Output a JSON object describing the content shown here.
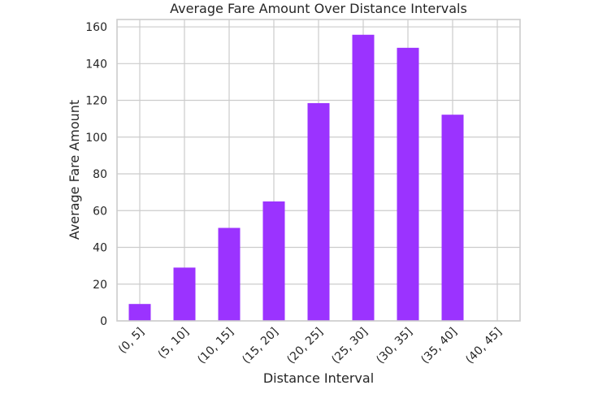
{
  "chart_data": {
    "type": "bar",
    "title": "Average Fare Amount Over Distance Intervals",
    "xlabel": "Distance Interval",
    "ylabel": "Average Fare Amount",
    "categories": [
      "(0, 5]",
      "(5, 10]",
      "(10, 15]",
      "(15, 20]",
      "(20, 25]",
      "(25, 30]",
      "(30, 35]",
      "(35, 40]",
      "(40, 45]"
    ],
    "values": [
      9.2,
      29.0,
      50.6,
      65.0,
      118.5,
      155.7,
      148.6,
      112.2,
      0
    ],
    "ylim": [
      0,
      164
    ],
    "yticks": [
      0,
      20,
      40,
      60,
      80,
      100,
      120,
      140,
      160
    ],
    "bar_color": "#9b33ff",
    "grid": true
  }
}
